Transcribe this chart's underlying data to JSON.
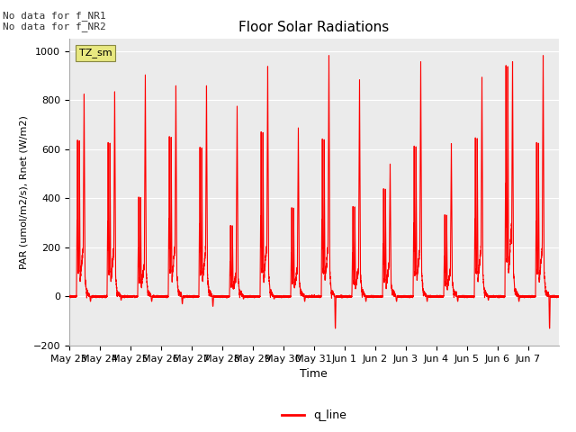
{
  "title": "Floor Solar Radiations",
  "ylabel": "PAR (umol/m2/s), Rnet (W/m2)",
  "xlabel": "Time",
  "ylim": [
    -200,
    1050
  ],
  "yticks": [
    -200,
    0,
    200,
    400,
    600,
    800,
    1000
  ],
  "line_color": "red",
  "line_width": 0.8,
  "legend_label": "q_line",
  "annotation_text": "No data for f_NR1\nNo data for f_NR2",
  "box_label": "TZ_sm",
  "box_color": "#e8e880",
  "bg_color": "#ebebeb",
  "grid_color": "#ffffff",
  "x_tick_labels": [
    "May 23",
    "May 24",
    "May 25",
    "May 26",
    "May 27",
    "May 28",
    "May 29",
    "May 30",
    "May 31",
    "Jun 1",
    "Jun 2",
    "Jun 3",
    "Jun 4",
    "Jun 5",
    "Jun 6",
    "Jun 7"
  ],
  "num_days": 16,
  "day_patterns": [
    {
      "p1": 660,
      "p2": 840,
      "dip": -20
    },
    {
      "p1": 650,
      "p2": 850,
      "dip": -15
    },
    {
      "p1": 420,
      "p2": 920,
      "dip": -20
    },
    {
      "p1": 675,
      "p2": 875,
      "dip": -30
    },
    {
      "p1": 630,
      "p2": 875,
      "dip": -40
    },
    {
      "p1": 300,
      "p2": 790,
      "dip": -10
    },
    {
      "p1": 695,
      "p2": 955,
      "dip": -10
    },
    {
      "p1": 375,
      "p2": 700,
      "dip": -20
    },
    {
      "p1": 665,
      "p2": 1000,
      "dip": -130
    },
    {
      "p1": 380,
      "p2": 900,
      "dip": -20
    },
    {
      "p1": 455,
      "p2": 550,
      "dip": -20
    },
    {
      "p1": 635,
      "p2": 975,
      "dip": -20
    },
    {
      "p1": 345,
      "p2": 635,
      "dip": -20
    },
    {
      "p1": 670,
      "p2": 910,
      "dip": -15
    },
    {
      "p1": 975,
      "p2": 975,
      "dip": -20
    },
    {
      "p1": 650,
      "p2": 1000,
      "dip": -130
    }
  ]
}
